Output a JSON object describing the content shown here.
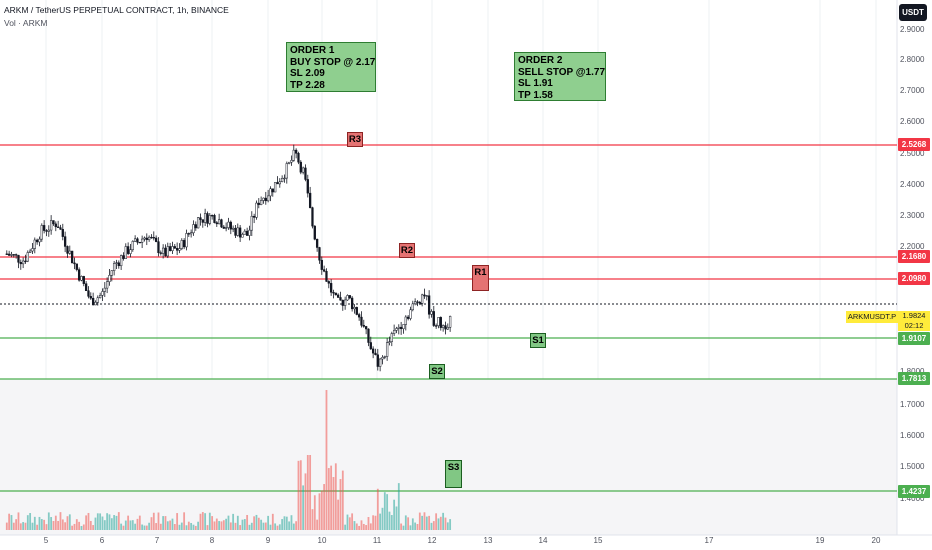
{
  "header": {
    "title": "ARKM / TetherUS PERPETUAL CONTRACT, 1h, BINANCE",
    "volume_label": "Vol · ARKM",
    "currency": "USDT"
  },
  "colors": {
    "up": "#26a69a",
    "down": "#ef5350",
    "candle": "#131722",
    "resistance": "#f23645",
    "support": "#4caf50",
    "annotation_fill": "#8fcf8f"
  },
  "orders": [
    {
      "lines": [
        "ORDER 1",
        "BUY STOP @ 2.17",
        "SL 2.09",
        "TP 2.28"
      ]
    },
    {
      "lines": [
        "ORDER 2",
        "SELL STOP @1.77",
        "SL 1.91",
        "TP 1.58"
      ]
    }
  ],
  "level_tags": [
    "R3",
    "R2",
    "R1",
    "S1",
    "S2",
    "S3"
  ],
  "price_labels": {
    "r3": "2.5268",
    "r2": "2.1680",
    "r1": "2.0980",
    "s1": "1.9107",
    "s2": "1.7813",
    "s3": "1.4237"
  },
  "current": {
    "symbol": "ARKMUSDT.P",
    "price": "1.9824",
    "countdown": "02:12"
  },
  "chart_data": {
    "type": "candlestick",
    "symbol": "ARKMUSDT.P",
    "timeframe": "1h",
    "y_axis_ticks": [
      "2.9000",
      "2.8000",
      "2.7000",
      "2.6000",
      "2.5000",
      "2.4000",
      "2.3000",
      "2.2000",
      "1.8000",
      "1.7000",
      "1.6000",
      "1.5000",
      "1.4000"
    ],
    "x_axis_ticks": [
      "5",
      "6",
      "7",
      "8",
      "9",
      "10",
      "11",
      "12",
      "13",
      "14",
      "15",
      "17",
      "19",
      "20"
    ],
    "ylim": [
      1.35,
      2.95
    ],
    "xlim": [
      4.3,
      20.5
    ],
    "horizontal_levels": [
      {
        "name": "R3",
        "price": 2.5268
      },
      {
        "name": "R2",
        "price": 2.168
      },
      {
        "name": "R1",
        "price": 2.098
      },
      {
        "name": "S1",
        "price": 1.9107
      },
      {
        "name": "S2",
        "price": 1.7813
      },
      {
        "name": "S3",
        "price": 1.4237
      }
    ],
    "current_price": 1.9824,
    "price_path": [
      [
        4.3,
        2.18
      ],
      [
        4.6,
        2.16
      ],
      [
        4.9,
        2.25
      ],
      [
        5.2,
        2.28
      ],
      [
        5.5,
        2.15
      ],
      [
        5.8,
        2.03
      ],
      [
        6.0,
        2.05
      ],
      [
        6.2,
        2.14
      ],
      [
        6.5,
        2.2
      ],
      [
        6.8,
        2.24
      ],
      [
        7.1,
        2.18
      ],
      [
        7.4,
        2.2
      ],
      [
        7.7,
        2.29
      ],
      [
        8.0,
        2.3
      ],
      [
        8.3,
        2.26
      ],
      [
        8.6,
        2.24
      ],
      [
        8.8,
        2.35
      ],
      [
        9.0,
        2.38
      ],
      [
        9.3,
        2.45
      ],
      [
        9.45,
        2.5
      ],
      [
        9.6,
        2.44
      ],
      [
        9.75,
        2.28
      ],
      [
        9.9,
        2.16
      ],
      [
        10.05,
        2.08
      ],
      [
        10.2,
        2.02
      ],
      [
        10.4,
        2.04
      ],
      [
        10.6,
        1.98
      ],
      [
        10.8,
        1.88
      ],
      [
        10.95,
        1.82
      ],
      [
        11.1,
        1.89
      ],
      [
        11.3,
        1.95
      ],
      [
        11.55,
        2.01
      ],
      [
        11.75,
        2.06
      ],
      [
        11.9,
        1.97
      ],
      [
        12.1,
        1.95
      ],
      [
        12.25,
        1.98
      ]
    ]
  }
}
